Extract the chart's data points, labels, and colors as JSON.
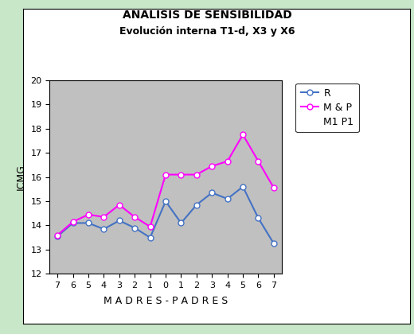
{
  "title_line1": "ANALISIS DE SENSIBILIDAD",
  "title_line2": "Evolución interna T1-d, X3 y X6",
  "xlabel": "M A D R E S - P A D R E S",
  "ylabel": "ICMG",
  "x_ticks": [
    "7",
    "6",
    "5",
    "4",
    "3",
    "2",
    "1",
    "0",
    "1",
    "2",
    "3",
    "4",
    "5",
    "6",
    "7"
  ],
  "x_positions": [
    0,
    1,
    2,
    3,
    4,
    5,
    6,
    7,
    8,
    9,
    10,
    11,
    12,
    13,
    14
  ],
  "R_values": [
    13.55,
    14.1,
    14.1,
    13.85,
    14.2,
    13.9,
    13.5,
    15.0,
    14.1,
    14.85,
    15.35,
    15.1,
    15.6,
    14.3,
    13.25
  ],
  "MP_values": [
    13.6,
    14.15,
    14.45,
    14.35,
    14.85,
    14.35,
    13.95,
    16.1,
    16.1,
    16.1,
    16.45,
    16.65,
    17.75,
    16.65,
    15.55
  ],
  "R_color": "#4472c4",
  "MP_color": "#ff00ff",
  "ylim": [
    12,
    20
  ],
  "plot_bg": "#c0c0c0",
  "outer_bg": "#ffffff",
  "border_color": "#c8e6c8",
  "legend_labels": [
    "R",
    "M & P",
    "M1 P1"
  ],
  "marker_size": 5
}
